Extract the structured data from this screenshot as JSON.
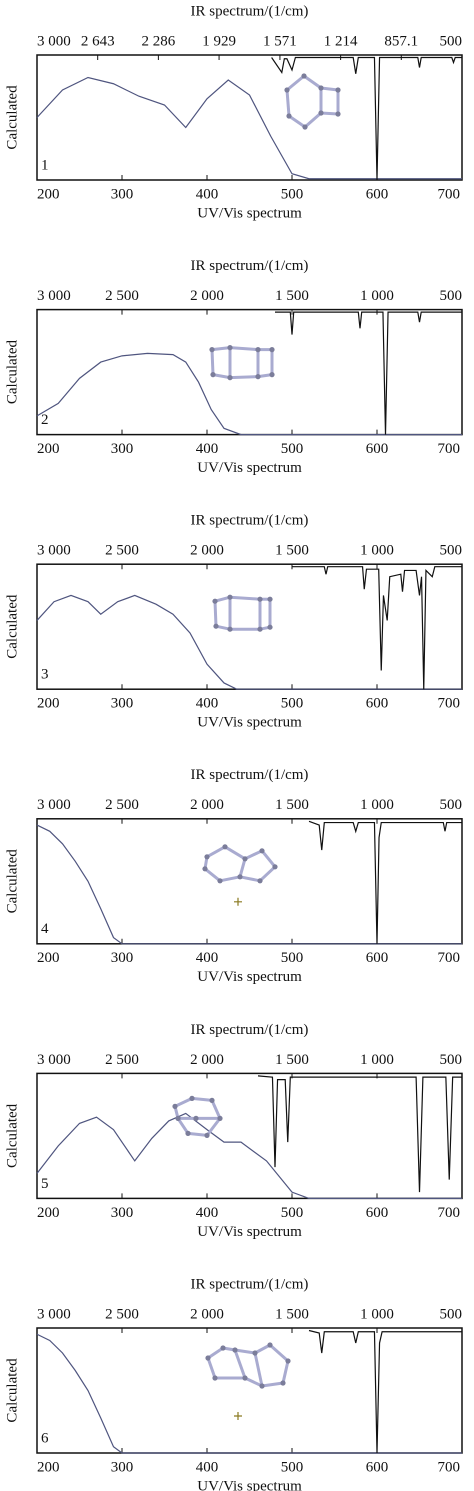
{
  "chart_data": [
    {
      "type": "line",
      "top_axis_label": "IR spectrum/(1/cm)",
      "x_axis_label": "UV/Vis spectrum",
      "y_axis_label": "Calculated",
      "panel_label": "1",
      "xlim": [
        200,
        700
      ],
      "xticks": [
        200,
        300,
        400,
        500,
        600,
        700
      ],
      "x2lim": [
        3000,
        500
      ],
      "x2ticks": [
        {
          "value": 3000,
          "label": "3 000"
        },
        {
          "value": 2643,
          "label": "2 643"
        },
        {
          "value": 2286,
          "label": "2 286"
        },
        {
          "value": 1929,
          "label": "1 929"
        },
        {
          "value": 1571,
          "label": "1 571"
        },
        {
          "value": 1214,
          "label": "1 214"
        },
        857.1,
        500
      ],
      "ylim": [
        0,
        1
      ],
      "series": [
        {
          "color": "#4f557f",
          "x": [
            200,
            230,
            260,
            290,
            320,
            350,
            375,
            400,
            425,
            450,
            475,
            500,
            520,
            700
          ],
          "values": [
            0.5,
            0.72,
            0.82,
            0.77,
            0.67,
            0.6,
            0.42,
            0.65,
            0.8,
            0.68,
            0.35,
            0.05,
            0.01,
            0.01
          ]
        },
        {
          "color": "#111111",
          "axis": "x2",
          "x": [
            1620,
            1560,
            1545,
            1530,
            1500,
            1480,
            1140,
            1125,
            1110,
            1015,
            1000,
            985,
            760,
            750,
            740,
            560,
            550,
            540,
            500
          ],
          "values": [
            0.98,
            0.86,
            0.97,
            0.97,
            0.88,
            0.98,
            0.98,
            0.85,
            0.98,
            0.98,
            0.0,
            0.98,
            0.98,
            0.9,
            0.98,
            0.98,
            0.94,
            0.98,
            0.98
          ]
        }
      ]
    },
    {
      "type": "line",
      "top_axis_label": "IR spectrum/(1/cm)",
      "x_axis_label": "UV/Vis spectrum",
      "y_axis_label": "Calculated",
      "panel_label": "2",
      "xlim": [
        200,
        700
      ],
      "xticks": [
        200,
        300,
        400,
        500,
        600,
        700
      ],
      "x2lim": [
        3000,
        500
      ],
      "x2ticks": [
        {
          "value": 3000,
          "label": "3 000"
        },
        {
          "value": 2500,
          "label": "2 500"
        },
        {
          "value": 2000,
          "label": "2 000"
        },
        {
          "value": 1500,
          "label": "1 500"
        },
        {
          "value": 1000,
          "label": "1 000"
        },
        500
      ],
      "ylim": [
        0,
        1
      ],
      "series": [
        {
          "color": "#4f557f",
          "x": [
            200,
            225,
            250,
            275,
            300,
            330,
            360,
            375,
            390,
            405,
            420,
            440,
            700
          ],
          "values": [
            0.15,
            0.25,
            0.45,
            0.58,
            0.63,
            0.65,
            0.64,
            0.58,
            0.42,
            0.2,
            0.05,
            0.0,
            0.0
          ]
        },
        {
          "color": "#111111",
          "axis": "x2",
          "x": [
            1600,
            1510,
            1500,
            1490,
            1110,
            1100,
            1090,
            965,
            950,
            935,
            760,
            750,
            740,
            500
          ],
          "values": [
            0.98,
            0.98,
            0.8,
            0.98,
            0.98,
            0.85,
            0.98,
            0.98,
            0.0,
            0.98,
            0.98,
            0.9,
            0.98,
            0.98
          ]
        }
      ]
    },
    {
      "type": "line",
      "top_axis_label": "IR spectrum/(1/cm)",
      "x_axis_label": "UV/Vis spectrum",
      "y_axis_label": "Calculated",
      "panel_label": "3",
      "xlim": [
        200,
        700
      ],
      "xticks": [
        200,
        300,
        400,
        500,
        600,
        700
      ],
      "x2lim": [
        3000,
        500
      ],
      "x2ticks": [
        {
          "value": 3000,
          "label": "3 000"
        },
        {
          "value": 2500,
          "label": "2 500"
        },
        {
          "value": 2000,
          "label": "2 000"
        },
        {
          "value": 1500,
          "label": "1 500"
        },
        {
          "value": 1000,
          "label": "1 000"
        },
        500
      ],
      "ylim": [
        0,
        1
      ],
      "series": [
        {
          "color": "#4f557f",
          "x": [
            200,
            220,
            240,
            260,
            275,
            295,
            315,
            340,
            360,
            380,
            400,
            420,
            435,
            700
          ],
          "values": [
            0.55,
            0.7,
            0.75,
            0.7,
            0.6,
            0.7,
            0.75,
            0.68,
            0.6,
            0.45,
            0.2,
            0.05,
            0.0,
            0.0
          ]
        },
        {
          "color": "#111111",
          "axis": "x2",
          "x": [
            1500,
            1310,
            1300,
            1290,
            1085,
            1075,
            1062,
            990,
            975,
            962,
            940,
            925,
            860,
            850,
            838,
            770,
            750,
            738,
            725,
            712,
            675,
            660,
            500
          ],
          "values": [
            0.98,
            0.98,
            0.92,
            0.98,
            0.98,
            0.8,
            0.96,
            0.96,
            0.15,
            0.75,
            0.55,
            0.9,
            0.92,
            0.78,
            0.95,
            0.95,
            0.75,
            0.9,
            0.0,
            0.95,
            0.9,
            0.98,
            0.98
          ]
        }
      ]
    },
    {
      "type": "line",
      "top_axis_label": "IR spectrum/(1/cm)",
      "x_axis_label": "UV/Vis spectrum",
      "y_axis_label": "Calculated",
      "panel_label": "4",
      "xlim": [
        200,
        700
      ],
      "xticks": [
        200,
        300,
        400,
        500,
        600,
        700
      ],
      "x2lim": [
        3000,
        500
      ],
      "x2ticks": [
        {
          "value": 3000,
          "label": "3 000"
        },
        {
          "value": 2500,
          "label": "2 500"
        },
        {
          "value": 2000,
          "label": "2 000"
        },
        {
          "value": 1500,
          "label": "1 500"
        },
        {
          "value": 1000,
          "label": "1 000"
        },
        500
      ],
      "ylim": [
        0,
        1
      ],
      "series": [
        {
          "color": "#4f557f",
          "x": [
            200,
            215,
            230,
            245,
            260,
            275,
            290,
            300,
            700
          ],
          "values": [
            0.95,
            0.9,
            0.8,
            0.66,
            0.5,
            0.28,
            0.05,
            0.0,
            0.0
          ]
        },
        {
          "color": "#111111",
          "axis": "x2",
          "x": [
            1400,
            1340,
            1325,
            1310,
            1140,
            1125,
            1110,
            1015,
            1000,
            988,
            975,
            610,
            600,
            590,
            500
          ],
          "values": [
            0.98,
            0.95,
            0.75,
            0.97,
            0.97,
            0.9,
            0.97,
            0.97,
            0.0,
            0.85,
            0.97,
            0.97,
            0.9,
            0.97,
            0.97
          ]
        }
      ]
    },
    {
      "type": "line",
      "top_axis_label": "IR spectrum/(1/cm)",
      "x_axis_label": "UV/Vis spectrum",
      "y_axis_label": "Calculated",
      "panel_label": "5",
      "xlim": [
        200,
        700
      ],
      "xticks": [
        200,
        300,
        400,
        500,
        600,
        700
      ],
      "x2lim": [
        3000,
        500
      ],
      "x2ticks": [
        {
          "value": 3000,
          "label": "3 000"
        },
        {
          "value": 2500,
          "label": "2 500"
        },
        {
          "value": 2000,
          "label": "2 000"
        },
        {
          "value": 1500,
          "label": "1 500"
        },
        {
          "value": 1000,
          "label": "1 000"
        },
        500
      ],
      "ylim": [
        0,
        1
      ],
      "series": [
        {
          "color": "#4f557f",
          "x": [
            200,
            225,
            250,
            270,
            290,
            315,
            335,
            355,
            375,
            400,
            420,
            440,
            470,
            500,
            520,
            700
          ],
          "values": [
            0.2,
            0.42,
            0.6,
            0.65,
            0.55,
            0.3,
            0.48,
            0.62,
            0.68,
            0.55,
            0.45,
            0.45,
            0.3,
            0.05,
            0.0,
            0.0
          ]
        },
        {
          "color": "#111111",
          "axis": "x2",
          "x": [
            1700,
            1615,
            1600,
            1585,
            1540,
            1525,
            1510,
            770,
            750,
            730,
            595,
            575,
            555,
            500
          ],
          "values": [
            0.98,
            0.97,
            0.25,
            0.95,
            0.95,
            0.45,
            0.97,
            0.97,
            0.05,
            0.97,
            0.97,
            0.15,
            0.97,
            0.97
          ]
        }
      ]
    },
    {
      "type": "line",
      "top_axis_label": "IR spectrum/(1/cm)",
      "x_axis_label": "UV/Vis spectrum",
      "y_axis_label": "Calculated",
      "panel_label": "6",
      "xlim": [
        200,
        700
      ],
      "xticks": [
        200,
        300,
        400,
        500,
        600,
        700
      ],
      "x2lim": [
        3000,
        500
      ],
      "x2ticks": [
        {
          "value": 3000,
          "label": "3 000"
        },
        {
          "value": 2500,
          "label": "2 500"
        },
        {
          "value": 2000,
          "label": "2 000"
        },
        {
          "value": 1500,
          "label": "1 500"
        },
        {
          "value": 1000,
          "label": "1 000"
        },
        500
      ],
      "ylim": [
        0,
        1
      ],
      "series": [
        {
          "color": "#4f557f",
          "x": [
            200,
            215,
            230,
            245,
            260,
            275,
            290,
            300,
            700
          ],
          "values": [
            0.95,
            0.9,
            0.8,
            0.66,
            0.5,
            0.28,
            0.05,
            0.0,
            0.0
          ]
        },
        {
          "color": "#111111",
          "axis": "x2",
          "x": [
            1400,
            1340,
            1325,
            1310,
            1140,
            1125,
            1110,
            1015,
            1000,
            985,
            970,
            500
          ],
          "values": [
            0.98,
            0.96,
            0.8,
            0.97,
            0.97,
            0.88,
            0.97,
            0.97,
            0.0,
            0.88,
            0.97,
            0.97
          ]
        }
      ]
    }
  ]
}
